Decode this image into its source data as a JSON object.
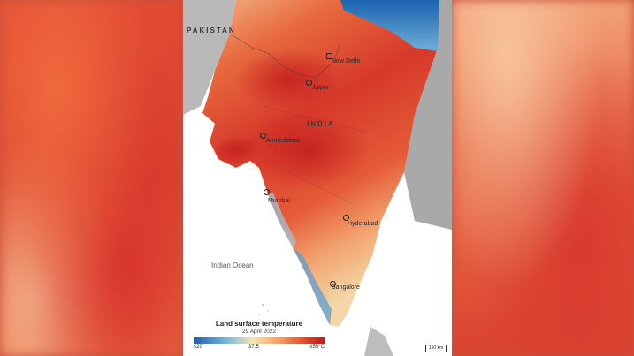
{
  "map": {
    "country_labels": {
      "pakistan": "PAKISTAN",
      "india": "INDIA"
    },
    "ocean_label": "Indian Ocean",
    "cities": {
      "new_delhi": "New Delhi",
      "jaipur": "Jaipur",
      "ahmedabad": "Ahmedabad",
      "mumbai": "Mumbai",
      "hyderabad": "Hyderabad",
      "bangalore": "Bangalore"
    },
    "scale_bar": "150 km"
  },
  "legend": {
    "title": "Land surface temperature",
    "date": "29 April 2022",
    "tick_min": "≤20",
    "tick_mid": "37.5",
    "tick_max": "≥55°C",
    "colors": [
      "#1e5fa8",
      "#7bb7d6",
      "#f3e6b6",
      "#f3a06a",
      "#df4a2f",
      "#b81d1d"
    ]
  }
}
